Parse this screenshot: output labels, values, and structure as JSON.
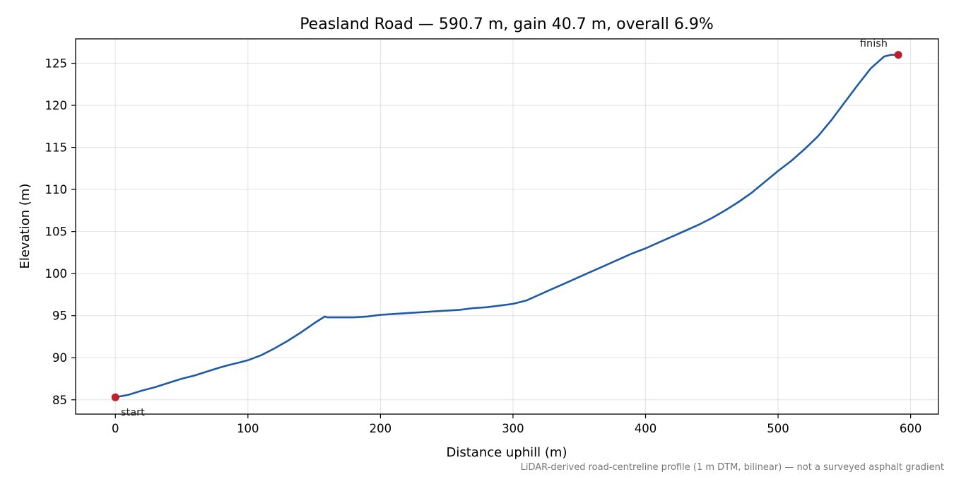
{
  "chart_data": {
    "type": "line",
    "title": "Peasland Road — 590.7 m, gain 40.7 m, overall 6.9%",
    "xlabel": "Distance uphill (m)",
    "ylabel": "Elevation (m)",
    "xlim": [
      -30,
      621
    ],
    "ylim": [
      83.3,
      127.9
    ],
    "xticks": [
      0,
      100,
      200,
      300,
      400,
      500,
      600
    ],
    "yticks": [
      85,
      90,
      95,
      100,
      105,
      110,
      115,
      120,
      125
    ],
    "grid": true,
    "line_color": "#1f5aa6",
    "marker_color": "#c0202a",
    "series": [
      {
        "x": [
          0,
          10,
          20,
          30,
          40,
          50,
          60,
          70,
          78,
          85,
          95,
          100,
          110,
          120,
          130,
          140,
          150,
          158,
          160,
          165,
          170,
          180,
          190,
          200,
          210,
          220,
          230,
          240,
          250,
          260,
          270,
          280,
          290,
          300,
          310,
          320,
          330,
          340,
          350,
          360,
          370,
          380,
          390,
          400,
          410,
          420,
          430,
          440,
          450,
          460,
          470,
          480,
          490,
          500,
          510,
          520,
          530,
          540,
          550,
          560,
          570,
          580,
          585,
          590.7
        ],
        "values": [
          85.3,
          85.6,
          86.1,
          86.5,
          87.0,
          87.5,
          87.9,
          88.4,
          88.8,
          89.1,
          89.5,
          89.7,
          90.3,
          91.1,
          92.0,
          93.0,
          94.1,
          94.9,
          94.8,
          94.8,
          94.8,
          94.8,
          94.9,
          95.1,
          95.2,
          95.3,
          95.4,
          95.5,
          95.6,
          95.7,
          95.9,
          96.0,
          96.2,
          96.4,
          96.8,
          97.5,
          98.2,
          98.9,
          99.6,
          100.3,
          101.0,
          101.7,
          102.4,
          103.0,
          103.7,
          104.4,
          105.1,
          105.8,
          106.6,
          107.5,
          108.5,
          109.6,
          110.9,
          112.2,
          113.4,
          114.8,
          116.3,
          118.2,
          120.3,
          122.4,
          124.4,
          125.8,
          126.0,
          126.0
        ]
      }
    ],
    "annotations": [
      {
        "text": "start",
        "x": 0,
        "y": 85.3
      },
      {
        "text": "finish",
        "x": 590.7,
        "y": 126.0
      }
    ],
    "footnote": "LiDAR-derived road-centreline profile (1 m DTM, bilinear) — not a surveyed asphalt gradient"
  }
}
